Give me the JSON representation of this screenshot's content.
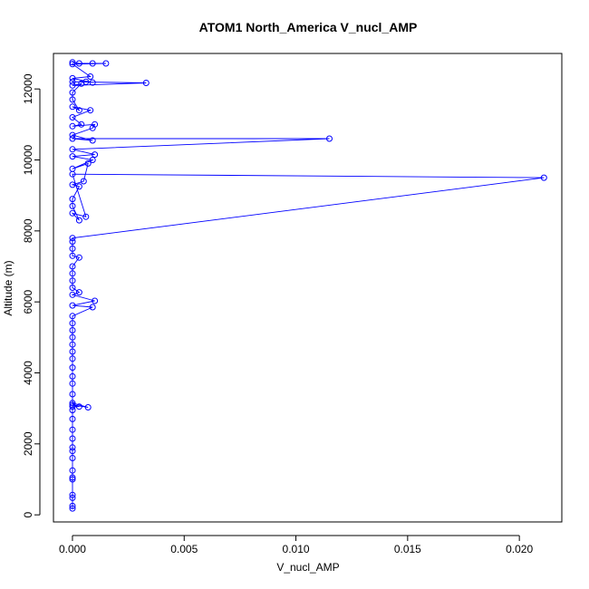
{
  "chart_data": {
    "type": "line",
    "title": "ATOM1 North_America V_nucl_AMP",
    "xlabel": "V_nucl_AMP",
    "ylabel": "Altitude (m)",
    "xlim": [
      -0.00085,
      0.0219
    ],
    "ylim": [
      -200,
      13000
    ],
    "x_ticks": [
      0.0,
      0.005,
      0.01,
      0.015,
      0.02
    ],
    "x_tick_labels": [
      "0.000",
      "0.005",
      "0.010",
      "0.015",
      "0.020"
    ],
    "y_ticks": [
      0,
      2000,
      4000,
      6000,
      8000,
      10000,
      12000
    ],
    "y_tick_labels": [
      "0",
      "2000",
      "4000",
      "6000",
      "8000",
      "10000",
      "12000"
    ],
    "grid": false,
    "marker": "open-circle",
    "series": [
      {
        "color": "#0000ff",
        "points": [
          [
            0,
            180
          ],
          [
            0,
            250
          ],
          [
            0,
            480
          ],
          [
            0,
            560
          ],
          [
            0,
            1000
          ],
          [
            0,
            1050
          ],
          [
            0,
            1250
          ],
          [
            0,
            1600
          ],
          [
            0,
            1800
          ],
          [
            0,
            1900
          ],
          [
            0,
            2150
          ],
          [
            0,
            2400
          ],
          [
            0,
            2700
          ],
          [
            0,
            2950
          ],
          [
            0,
            3050
          ],
          [
            0.0003,
            3050
          ],
          [
            0,
            3100
          ],
          [
            0.0007,
            3030
          ],
          [
            0,
            3150
          ],
          [
            0,
            3400
          ],
          [
            0,
            3700
          ],
          [
            0,
            3900
          ],
          [
            0,
            4150
          ],
          [
            0,
            4400
          ],
          [
            0,
            4600
          ],
          [
            0,
            4800
          ],
          [
            0,
            5000
          ],
          [
            0,
            5200
          ],
          [
            0,
            5400
          ],
          [
            0,
            5600
          ],
          [
            0.0009,
            5850
          ],
          [
            0,
            5900
          ],
          [
            0.001,
            6030
          ],
          [
            0,
            6200
          ],
          [
            0.0003,
            6270
          ],
          [
            0,
            6400
          ],
          [
            0,
            6600
          ],
          [
            0,
            6800
          ],
          [
            0,
            7000
          ],
          [
            0.0003,
            7250
          ],
          [
            0,
            7300
          ],
          [
            0,
            7500
          ],
          [
            0,
            7700
          ],
          [
            0,
            7800
          ],
          [
            0.0211,
            9500
          ],
          [
            0,
            9600
          ],
          [
            0.0006,
            8400
          ],
          [
            0,
            8500
          ],
          [
            0.0003,
            8300
          ],
          [
            0,
            8700
          ],
          [
            0,
            8900
          ],
          [
            0.0003,
            9250
          ],
          [
            0,
            9300
          ],
          [
            0.0005,
            9400
          ],
          [
            0.0007,
            9900
          ],
          [
            0,
            9750
          ],
          [
            0.0009,
            10000
          ],
          [
            0,
            10100
          ],
          [
            0.001,
            10150
          ],
          [
            0,
            10300
          ],
          [
            0.0115,
            10600
          ],
          [
            0,
            10600
          ],
          [
            0.0009,
            10550
          ],
          [
            0,
            10700
          ],
          [
            0.0009,
            10900
          ],
          [
            0.001,
            11000
          ],
          [
            0,
            10950
          ],
          [
            0.0004,
            11000
          ],
          [
            0,
            11200
          ],
          [
            0.0008,
            11400
          ],
          [
            0,
            11500
          ],
          [
            0.0003,
            11400
          ],
          [
            0,
            11700
          ],
          [
            0,
            11900
          ],
          [
            0.0004,
            12150
          ],
          [
            0,
            12100
          ],
          [
            0.0033,
            12170
          ],
          [
            0,
            12200
          ],
          [
            0.0006,
            12200
          ],
          [
            0.0009,
            12180
          ],
          [
            0,
            12300
          ],
          [
            0.0008,
            12350
          ],
          [
            0,
            12700
          ],
          [
            0.0015,
            12720
          ],
          [
            0.0009,
            12720
          ],
          [
            0.0003,
            12720
          ],
          [
            0,
            12750
          ]
        ]
      }
    ]
  }
}
